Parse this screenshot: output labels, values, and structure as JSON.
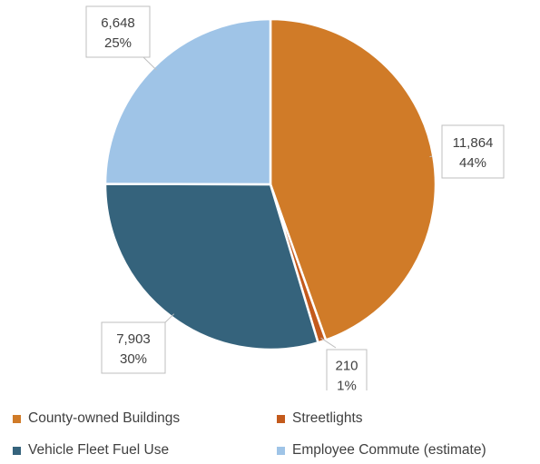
{
  "chart_data": {
    "type": "pie",
    "title": "",
    "start_angle_deg": 0,
    "direction": "clockwise",
    "legend_position": "bottom",
    "slices": [
      {
        "name": "County-owned Buildings",
        "value": 11864,
        "value_label": "11,864",
        "percent_label": "44%",
        "color": "#d07b28"
      },
      {
        "name": "Streetlights",
        "value": 210,
        "value_label": "210",
        "percent_label": "1%",
        "color": "#c35a1c"
      },
      {
        "name": "Vehicle Fleet Fuel Use",
        "value": 7903,
        "value_label": "7,903",
        "percent_label": "30%",
        "color": "#35637c"
      },
      {
        "name": "Employee Commute (estimate)",
        "value": 6648,
        "value_label": "6,648",
        "percent_label": "25%",
        "color": "#9fc4e7"
      }
    ]
  }
}
